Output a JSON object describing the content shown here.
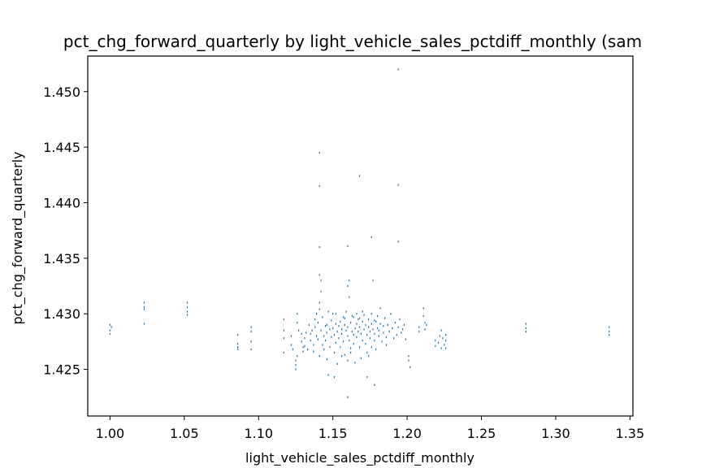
{
  "chart_data": {
    "type": "scatter",
    "title": "pct_chg_forward_quarterly by light_vehicle_sales_pctdiff_monthly (sam",
    "xlabel": "light_vehicle_sales_pctdiff_monthly",
    "ylabel": "pct_chg_forward_quarterly",
    "xlim": [
      0.985,
      1.352
    ],
    "ylim": [
      1.4208,
      1.4532
    ],
    "x_ticks": [
      1.0,
      1.05,
      1.1,
      1.15,
      1.2,
      1.25,
      1.3,
      1.35
    ],
    "x_tick_labels": [
      "1.00",
      "1.05",
      "1.10",
      "1.15",
      "1.20",
      "1.25",
      "1.30",
      "1.35"
    ],
    "y_ticks": [
      1.425,
      1.43,
      1.435,
      1.44,
      1.445,
      1.45
    ],
    "y_tick_labels": [
      "1.425",
      "1.430",
      "1.435",
      "1.440",
      "1.445",
      "1.450"
    ],
    "grid": false,
    "marker": "pixel",
    "color": "#1f77b4",
    "series": [
      {
        "points": [
          [
            1.0,
            1.429
          ],
          [
            1.0,
            1.4285
          ],
          [
            1.0,
            1.4282
          ],
          [
            1.001,
            1.4288
          ],
          [
            1.023,
            1.431
          ],
          [
            1.023,
            1.4306
          ],
          [
            1.023,
            1.4304
          ],
          [
            1.023,
            1.4291
          ],
          [
            1.052,
            1.431
          ],
          [
            1.052,
            1.4306
          ],
          [
            1.052,
            1.4302
          ],
          [
            1.052,
            1.4299
          ],
          [
            1.086,
            1.4281
          ],
          [
            1.086,
            1.4273
          ],
          [
            1.086,
            1.427
          ],
          [
            1.086,
            1.4268
          ],
          [
            1.095,
            1.4288
          ],
          [
            1.095,
            1.4284
          ],
          [
            1.095,
            1.4275
          ],
          [
            1.095,
            1.4268
          ],
          [
            1.117,
            1.4295
          ],
          [
            1.117,
            1.4285
          ],
          [
            1.117,
            1.4278
          ],
          [
            1.117,
            1.4265
          ],
          [
            1.122,
            1.428
          ],
          [
            1.122,
            1.4272
          ],
          [
            1.123,
            1.4268
          ],
          [
            1.125,
            1.4258
          ],
          [
            1.125,
            1.425
          ],
          [
            1.125,
            1.4254
          ],
          [
            1.126,
            1.4262
          ],
          [
            1.126,
            1.43
          ],
          [
            1.126,
            1.4292
          ],
          [
            1.127,
            1.4285
          ],
          [
            1.129,
            1.4282
          ],
          [
            1.129,
            1.4275
          ],
          [
            1.13,
            1.427
          ],
          [
            1.13,
            1.4266
          ],
          [
            1.131,
            1.4278
          ],
          [
            1.131,
            1.4271
          ],
          [
            1.132,
            1.4283
          ],
          [
            1.133,
            1.4268
          ],
          [
            1.134,
            1.429
          ],
          [
            1.135,
            1.4282
          ],
          [
            1.135,
            1.4276
          ],
          [
            1.136,
            1.4285
          ],
          [
            1.137,
            1.4272
          ],
          [
            1.137,
            1.4266
          ],
          [
            1.138,
            1.4295
          ],
          [
            1.138,
            1.4288
          ],
          [
            1.139,
            1.428
          ],
          [
            1.139,
            1.43
          ],
          [
            1.14,
            1.4292
          ],
          [
            1.14,
            1.4277
          ],
          [
            1.141,
            1.431
          ],
          [
            1.141,
            1.4304
          ],
          [
            1.141,
            1.4262
          ],
          [
            1.142,
            1.432
          ],
          [
            1.142,
            1.433
          ],
          [
            1.142,
            1.4285
          ],
          [
            1.143,
            1.4272
          ],
          [
            1.143,
            1.4297
          ],
          [
            1.144,
            1.428
          ],
          [
            1.144,
            1.4268
          ],
          [
            1.145,
            1.4289
          ],
          [
            1.145,
            1.4276
          ],
          [
            1.146,
            1.429
          ],
          [
            1.146,
            1.4283
          ],
          [
            1.146,
            1.4259
          ],
          [
            1.147,
            1.4302
          ],
          [
            1.147,
            1.4245
          ],
          [
            1.148,
            1.427
          ],
          [
            1.148,
            1.4286
          ],
          [
            1.149,
            1.4294
          ],
          [
            1.149,
            1.4279
          ],
          [
            1.15,
            1.4287
          ],
          [
            1.15,
            1.43
          ],
          [
            1.151,
            1.4265
          ],
          [
            1.151,
            1.4281
          ],
          [
            1.152,
            1.4291
          ],
          [
            1.152,
            1.4274
          ],
          [
            1.153,
            1.4284
          ],
          [
            1.153,
            1.4255
          ],
          [
            1.154,
            1.4289
          ],
          [
            1.154,
            1.4278
          ],
          [
            1.155,
            1.4293
          ],
          [
            1.155,
            1.427
          ],
          [
            1.156,
            1.4286
          ],
          [
            1.156,
            1.4282
          ],
          [
            1.157,
            1.4297
          ],
          [
            1.157,
            1.4275
          ],
          [
            1.158,
            1.429
          ],
          [
            1.158,
            1.4263
          ],
          [
            1.159,
            1.4285
          ],
          [
            1.159,
            1.4302
          ],
          [
            1.16,
            1.428
          ],
          [
            1.16,
            1.4288
          ],
          [
            1.16,
            1.4325
          ],
          [
            1.161,
            1.433
          ],
          [
            1.161,
            1.4315
          ],
          [
            1.161,
            1.4276
          ],
          [
            1.162,
            1.4292
          ],
          [
            1.162,
            1.4269
          ],
          [
            1.163,
            1.4284
          ],
          [
            1.163,
            1.4298
          ],
          [
            1.164,
            1.4281
          ],
          [
            1.164,
            1.4273
          ],
          [
            1.165,
            1.4287
          ],
          [
            1.165,
            1.4256
          ],
          [
            1.166,
            1.4291
          ],
          [
            1.166,
            1.4279
          ],
          [
            1.167,
            1.4284
          ],
          [
            1.167,
            1.4295
          ],
          [
            1.168,
            1.427
          ],
          [
            1.168,
            1.4288
          ],
          [
            1.169,
            1.4282
          ],
          [
            1.169,
            1.426
          ],
          [
            1.17,
            1.4293
          ],
          [
            1.17,
            1.4276
          ],
          [
            1.171,
            1.4286
          ],
          [
            1.171,
            1.4299
          ],
          [
            1.172,
            1.4273
          ],
          [
            1.172,
            1.429
          ],
          [
            1.173,
            1.4281
          ],
          [
            1.173,
            1.4265
          ],
          [
            1.174,
            1.4288
          ],
          [
            1.174,
            1.4295
          ],
          [
            1.175,
            1.4278
          ],
          [
            1.175,
            1.4284
          ],
          [
            1.176,
            1.4291
          ],
          [
            1.176,
            1.427
          ],
          [
            1.177,
            1.4286
          ],
          [
            1.177,
            1.433
          ],
          [
            1.178,
            1.4282
          ],
          [
            1.178,
            1.4276
          ],
          [
            1.179,
            1.4293
          ],
          [
            1.179,
            1.4268
          ],
          [
            1.18,
            1.4287
          ],
          [
            1.18,
            1.4298
          ],
          [
            1.181,
            1.428
          ],
          [
            1.181,
            1.4285
          ],
          [
            1.182,
            1.4291
          ],
          [
            1.182,
            1.4305
          ],
          [
            1.183,
            1.4275
          ],
          [
            1.184,
            1.4289
          ],
          [
            1.184,
            1.4283
          ],
          [
            1.185,
            1.4296
          ],
          [
            1.186,
            1.4279
          ],
          [
            1.186,
            1.4272
          ],
          [
            1.187,
            1.429
          ],
          [
            1.188,
            1.4284
          ],
          [
            1.189,
            1.43
          ],
          [
            1.19,
            1.4287
          ],
          [
            1.191,
            1.4278
          ],
          [
            1.192,
            1.4292
          ],
          [
            1.193,
            1.4281
          ],
          [
            1.194,
            1.4288
          ],
          [
            1.195,
            1.4295
          ],
          [
            1.196,
            1.4283
          ],
          [
            1.197,
            1.4286
          ],
          [
            1.198,
            1.429
          ],
          [
            1.199,
            1.4277
          ],
          [
            1.201,
            1.4262
          ],
          [
            1.201,
            1.4258
          ],
          [
            1.202,
            1.4252
          ],
          [
            1.208,
            1.4288
          ],
          [
            1.208,
            1.4284
          ],
          [
            1.211,
            1.4305
          ],
          [
            1.211,
            1.4298
          ],
          [
            1.212,
            1.4292
          ],
          [
            1.212,
            1.4286
          ],
          [
            1.213,
            1.429
          ],
          [
            1.219,
            1.4276
          ],
          [
            1.219,
            1.4271
          ],
          [
            1.221,
            1.4274
          ],
          [
            1.222,
            1.428
          ],
          [
            1.223,
            1.4285
          ],
          [
            1.223,
            1.4269
          ],
          [
            1.224,
            1.4278
          ],
          [
            1.225,
            1.4272
          ],
          [
            1.226,
            1.4281
          ],
          [
            1.226,
            1.4276
          ],
          [
            1.226,
            1.4269
          ],
          [
            1.28,
            1.4291
          ],
          [
            1.28,
            1.4287
          ],
          [
            1.28,
            1.4284
          ],
          [
            1.336,
            1.4288
          ],
          [
            1.336,
            1.4284
          ],
          [
            1.336,
            1.4281
          ],
          [
            1.166,
            1.43
          ],
          [
            1.168,
            1.4296
          ],
          [
            1.17,
            1.4302
          ],
          [
            1.164,
            1.4297
          ],
          [
            1.162,
            1.4265
          ],
          [
            1.16,
            1.4258
          ],
          [
            1.156,
            1.4262
          ],
          [
            1.174,
            1.4262
          ],
          [
            1.152,
            1.43
          ],
          [
            1.176,
            1.43
          ],
          [
            1.158,
            1.4296
          ],
          [
            1.178,
            1.4294
          ],
          [
            1.173,
            1.4243
          ],
          [
            1.151,
            1.4243
          ],
          [
            1.178,
            1.4236
          ],
          [
            1.16,
            1.4225
          ],
          [
            1.141,
            1.4335
          ],
          [
            1.141,
            1.436
          ],
          [
            1.16,
            1.4361
          ],
          [
            1.176,
            1.4369
          ],
          [
            1.194,
            1.4365
          ],
          [
            1.141,
            1.4415
          ],
          [
            1.194,
            1.4416
          ],
          [
            1.168,
            1.4424
          ],
          [
            1.141,
            1.4445
          ],
          [
            1.194,
            1.452
          ]
        ]
      }
    ]
  }
}
